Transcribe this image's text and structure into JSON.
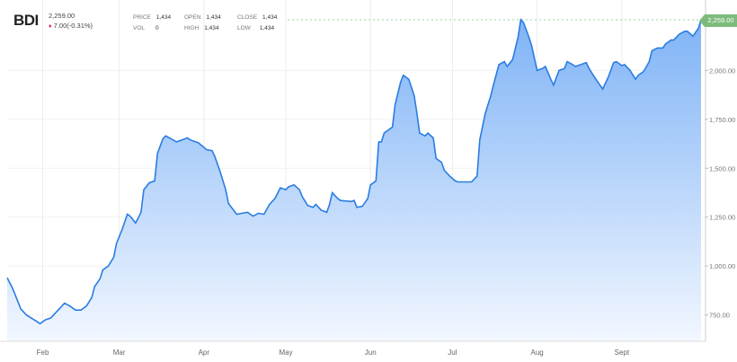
{
  "header": {
    "symbol": "BDI",
    "last": "2,259.00",
    "change": "7.00(-0.31%)",
    "change_direction": "down",
    "stats": [
      {
        "label": "PRICE",
        "value": "1,434"
      },
      {
        "label": "OPEN",
        "value": "1,434"
      },
      {
        "label": "CLOSE",
        "value": "1,434"
      },
      {
        "label": "VOL",
        "value": "0"
      },
      {
        "label": "HIGH",
        "value": "1,434"
      },
      {
        "label": "LOW",
        "value": "1,434"
      }
    ],
    "price_tag": "2,259.00"
  },
  "colors": {
    "line": "#2a7de1",
    "fill_top": "#7fb3f6",
    "fill_bottom": "#f2f7ff",
    "price_tag": "#7dbb7d",
    "down": "#e0245e"
  },
  "chart_data": {
    "type": "area",
    "title": "",
    "xlabel": "",
    "ylabel": "",
    "x_tick_labels": [
      "Feb",
      "Mar",
      "Apr",
      "May",
      "Jun",
      "Jul",
      "Aug",
      "Sept"
    ],
    "y_tick_labels": [
      "750.00",
      "1,000.00",
      "1,250.00",
      "1,500.00",
      "1,750.00",
      "2,000.00"
    ],
    "y_ticks": [
      750,
      1000,
      1250,
      1500,
      1750,
      2000
    ],
    "ylim": [
      615,
      2360
    ],
    "xlim": [
      "01-19",
      "09-30"
    ],
    "grid": true,
    "last_value": 2259,
    "x": [
      "01-19",
      "01-21",
      "01-24",
      "01-26",
      "01-30",
      "01-31",
      "02-02",
      "02-04",
      "02-06",
      "02-08",
      "02-09",
      "02-11",
      "02-13",
      "02-15",
      "02-17",
      "02-19",
      "02-20",
      "02-22",
      "02-23",
      "02-25",
      "02-27",
      "02-28",
      "03-02",
      "03-04",
      "03-05",
      "03-07",
      "03-09",
      "03-10",
      "03-12",
      "03-14",
      "03-15",
      "03-17",
      "03-18",
      "03-20",
      "03-22",
      "03-24",
      "03-26",
      "03-27",
      "03-30",
      "04-02",
      "04-04",
      "04-05",
      "04-07",
      "04-09",
      "04-10",
      "04-13",
      "04-15",
      "04-17",
      "04-19",
      "04-21",
      "04-23",
      "04-25",
      "04-27",
      "04-29",
      "05-01",
      "05-02",
      "05-04",
      "05-06",
      "05-07",
      "05-09",
      "05-11",
      "05-12",
      "05-14",
      "05-16",
      "05-17",
      "05-18",
      "05-20",
      "05-21",
      "05-25",
      "05-26",
      "05-27",
      "05-29",
      "05-31",
      "06-01",
      "06-03",
      "06-04",
      "06-05",
      "06-06",
      "06-07",
      "06-09",
      "06-10",
      "06-12",
      "06-13",
      "06-15",
      "06-17",
      "06-18",
      "06-19",
      "06-21",
      "06-22",
      "06-24",
      "06-25",
      "06-27",
      "06-28",
      "06-30",
      "07-02",
      "07-03",
      "07-07",
      "07-08",
      "07-10",
      "07-11",
      "07-13",
      "07-15",
      "07-16",
      "07-18",
      "07-20",
      "07-21",
      "07-23",
      "07-25",
      "07-26",
      "07-27",
      "07-29",
      "07-30",
      "08-01",
      "08-03",
      "08-04",
      "08-06",
      "08-07",
      "08-09",
      "08-11",
      "08-12",
      "08-14",
      "08-15",
      "08-17",
      "08-19",
      "08-20",
      "08-22",
      "08-24",
      "08-25",
      "08-27",
      "08-29",
      "08-30",
      "09-01",
      "09-02",
      "09-04",
      "09-06",
      "09-07",
      "09-09",
      "09-11",
      "09-12",
      "09-14",
      "09-16",
      "09-17",
      "09-19",
      "09-20",
      "09-22",
      "09-24",
      "09-25",
      "09-27",
      "09-29",
      "09-30"
    ],
    "values": [
      940,
      885,
      780,
      750,
      715,
      705,
      725,
      735,
      765,
      795,
      810,
      795,
      775,
      775,
      795,
      840,
      895,
      935,
      980,
      1000,
      1045,
      1115,
      1185,
      1265,
      1255,
      1220,
      1275,
      1390,
      1425,
      1435,
      1575,
      1650,
      1665,
      1650,
      1635,
      1645,
      1655,
      1645,
      1630,
      1595,
      1590,
      1560,
      1480,
      1390,
      1320,
      1265,
      1270,
      1275,
      1255,
      1270,
      1265,
      1315,
      1345,
      1400,
      1390,
      1405,
      1415,
      1390,
      1355,
      1310,
      1300,
      1315,
      1285,
      1275,
      1315,
      1375,
      1345,
      1335,
      1330,
      1335,
      1300,
      1305,
      1345,
      1415,
      1435,
      1635,
      1635,
      1680,
      1690,
      1710,
      1825,
      1940,
      1975,
      1955,
      1870,
      1780,
      1680,
      1665,
      1680,
      1655,
      1550,
      1530,
      1490,
      1460,
      1435,
      1430,
      1430,
      1430,
      1460,
      1645,
      1780,
      1870,
      1925,
      2030,
      2045,
      2020,
      2055,
      2170,
      2260,
      2245,
      2170,
      2125,
      2000,
      2010,
      2020,
      1955,
      1925,
      2000,
      2010,
      2045,
      2030,
      2020,
      2030,
      2040,
      2010,
      1965,
      1925,
      1905,
      1965,
      2040,
      2045,
      2025,
      2030,
      2000,
      1955,
      1975,
      1995,
      2045,
      2100,
      2115,
      2115,
      2135,
      2155,
      2155,
      2185,
      2200,
      2200,
      2175,
      2215,
      2259
    ]
  }
}
